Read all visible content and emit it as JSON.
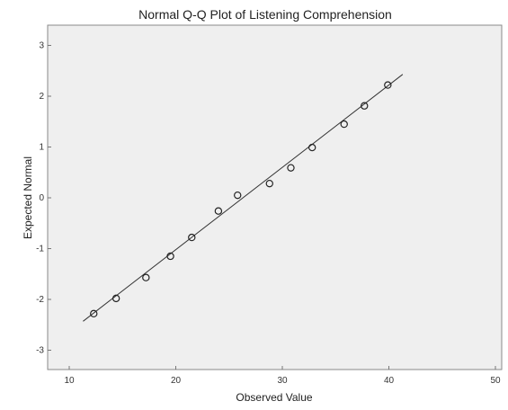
{
  "chart_data": {
    "type": "scatter",
    "title": "Normal Q-Q Plot of Listening Comprehension",
    "xlabel": "Observed Value",
    "ylabel": "Expected Normal",
    "xlim": [
      10,
      50
    ],
    "ylim": [
      -3,
      3
    ],
    "x_ticks": [
      "10",
      "20",
      "30",
      "40",
      "50"
    ],
    "y_ticks": [
      "3",
      "2",
      "1",
      "0",
      "-1",
      "-2",
      "-3"
    ],
    "grid": false,
    "background": "#efefef",
    "points": [
      {
        "x": 12.3,
        "y": -2.28
      },
      {
        "x": 14.4,
        "y": -1.98
      },
      {
        "x": 17.2,
        "y": -1.57
      },
      {
        "x": 19.5,
        "y": -1.15
      },
      {
        "x": 21.5,
        "y": -0.78
      },
      {
        "x": 24.0,
        "y": -0.26
      },
      {
        "x": 25.8,
        "y": 0.05
      },
      {
        "x": 28.8,
        "y": 0.28
      },
      {
        "x": 30.8,
        "y": 0.59
      },
      {
        "x": 32.8,
        "y": 0.99
      },
      {
        "x": 35.8,
        "y": 1.45
      },
      {
        "x": 37.7,
        "y": 1.81
      },
      {
        "x": 39.9,
        "y": 2.22
      }
    ],
    "reference_line": {
      "x1": 11.3,
      "y1": -2.43,
      "x2": 41.3,
      "y2": 2.43
    }
  }
}
